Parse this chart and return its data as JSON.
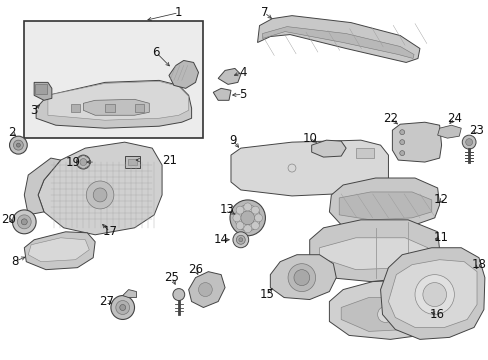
{
  "background_color": "#ffffff",
  "fig_width": 4.89,
  "fig_height": 3.6,
  "dpi": 100,
  "image_b64": ""
}
